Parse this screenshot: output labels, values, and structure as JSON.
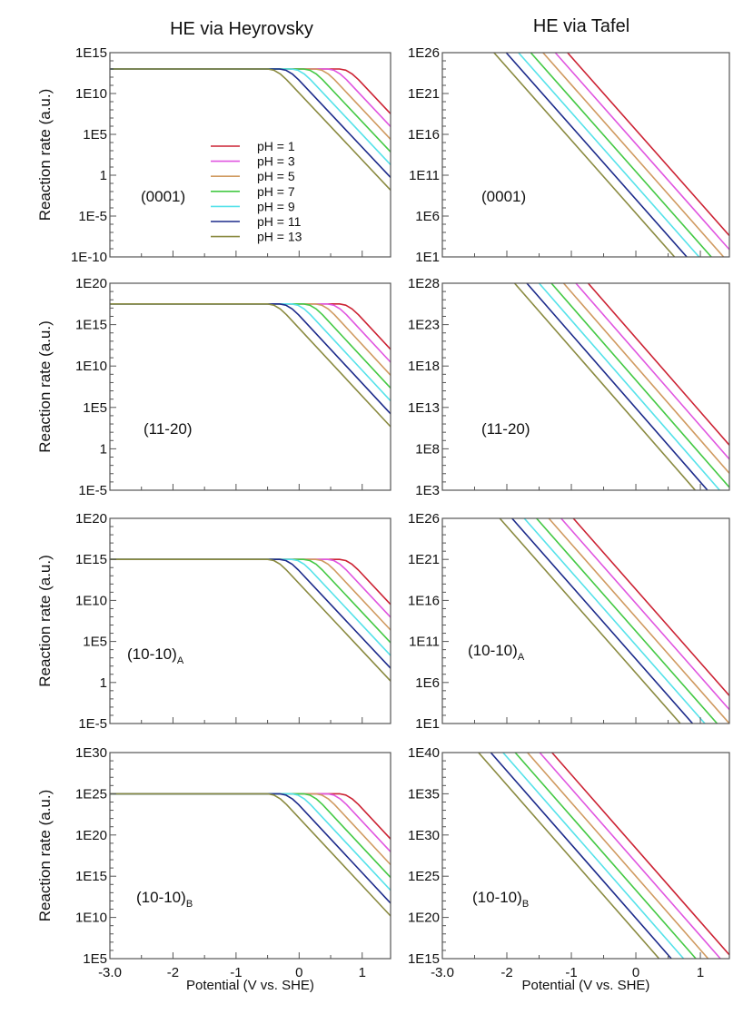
{
  "columns": [
    {
      "title": "HE via Heyrovsky"
    },
    {
      "title": "HE via Tafel"
    }
  ],
  "colors": [
    "#cc2233",
    "#e055e0",
    "#d09a60",
    "#44c944",
    "#55e2ea",
    "#1c2a8a",
    "#8a8a40"
  ],
  "legend": {
    "placement": "center",
    "entries": [
      "pH = 1",
      "pH = 3",
      "pH = 5",
      "pH = 7",
      "pH = 9",
      "pH = 11",
      "pH = 13"
    ]
  },
  "chart_data": [
    {
      "type": "line",
      "column": 0,
      "panel_label": "(0001)",
      "panel_sub": "",
      "ylabel": "Reaction rate (a.u.)",
      "xlabel": "",
      "yscale": "log",
      "xlim": [
        -3,
        1.45
      ],
      "ylim": [
        1e-10,
        1000000000000000.0
      ],
      "yticks": [
        1000000000000000.0,
        10000000000.0,
        100000.0,
        1,
        1e-05,
        1e-10
      ],
      "ytick_labels": [
        "1E15",
        "1E10",
        "1E5",
        "1",
        "1E-5",
        "1E-10"
      ],
      "xtick_labels": [],
      "show_legend": true,
      "series": [
        {
          "x": [
            -3,
            0.64,
            0.74,
            0.84,
            0.94,
            1.45
          ],
          "y": [
            10000000000000.0,
            10000000000000.0,
            7100000000000.0,
            2500000000000.0,
            500000000000.0,
            33000000.0
          ]
        },
        {
          "x": [
            -3,
            0.45,
            0.55,
            0.65,
            0.75,
            1.45
          ],
          "y": [
            10000000000000.0,
            10000000000000.0,
            7100000000000.0,
            2500000000000.0,
            500000000000.0,
            910000.0
          ]
        },
        {
          "x": [
            -3,
            0.26,
            0.36,
            0.46,
            0.56,
            1.45
          ],
          "y": [
            10000000000000.0,
            10000000000000.0,
            7100000000000.0,
            2500000000000.0,
            500000000000.0,
            25000.0
          ]
        },
        {
          "x": [
            -3,
            0.07,
            0.17,
            0.27,
            0.37,
            1.45
          ],
          "y": [
            10000000000000.0,
            10000000000000.0,
            7100000000000.0,
            2500000000000.0,
            500000000000.0,
            710
          ]
        },
        {
          "x": [
            -3,
            -0.12,
            -0.02,
            0.08,
            0.18,
            1.45
          ],
          "y": [
            10000000000000.0,
            10000000000000.0,
            7100000000000.0,
            2500000000000.0,
            500000000000.0,
            19.5
          ]
        },
        {
          "x": [
            -3,
            -0.31,
            -0.21,
            -0.11,
            -0.01,
            1.45
          ],
          "y": [
            10000000000000.0,
            10000000000000.0,
            7100000000000.0,
            2500000000000.0,
            500000000000.0,
            0.54
          ]
        },
        {
          "x": [
            -3,
            -0.5,
            -0.4,
            -0.3,
            -0.2,
            1.45
          ],
          "y": [
            10000000000000.0,
            10000000000000.0,
            7100000000000.0,
            2500000000000.0,
            500000000000.0,
            0.015
          ]
        }
      ]
    },
    {
      "type": "line",
      "column": 1,
      "panel_label": "(0001)",
      "panel_sub": "",
      "ylabel": "",
      "xlabel": "",
      "yscale": "log",
      "xlim": [
        -3,
        1.45
      ],
      "ylim": [
        10.0,
        1e+26
      ],
      "yticks": [
        1e+26,
        1e+21,
        1e+16,
        100000000000.0,
        1000000.0,
        10.0
      ],
      "ytick_labels": [
        "1E26",
        "1E21",
        "1E16",
        "1E11",
        "1E6",
        "1E1"
      ],
      "xtick_labels": [],
      "series": [
        {
          "x": [
            -1.06,
            1.45
          ],
          "y": [
            1e+26,
            4000.0
          ]
        },
        {
          "x": [
            -1.25,
            1.45
          ],
          "y": [
            1e+26,
            79
          ]
        },
        {
          "x": [
            -1.44,
            1.36
          ],
          "y": [
            1e+26,
            10
          ]
        },
        {
          "x": [
            -1.63,
            1.17
          ],
          "y": [
            1e+26,
            10
          ]
        },
        {
          "x": [
            -1.82,
            0.98
          ],
          "y": [
            1e+26,
            10
          ]
        },
        {
          "x": [
            -2.01,
            0.79
          ],
          "y": [
            1e+26,
            10
          ]
        },
        {
          "x": [
            -2.2,
            0.6
          ],
          "y": [
            1e+26,
            10
          ]
        }
      ]
    },
    {
      "type": "line",
      "column": 0,
      "panel_label": "(11-20)",
      "panel_sub": "",
      "ylabel": "Reaction rate (a.u.)",
      "xlabel": "",
      "yscale": "log",
      "xlim": [
        -3,
        1.45
      ],
      "ylim": [
        1e-05,
        1e+20
      ],
      "yticks": [
        1e+20,
        1000000000000000.0,
        10000000000.0,
        100000.0,
        1,
        1e-05
      ],
      "ytick_labels": [
        "1E20",
        "1E15",
        "1E10",
        "1E5",
        "1",
        "1E-5"
      ],
      "xtick_labels": [],
      "series": [
        {
          "x": [
            -3,
            0.64,
            0.74,
            0.84,
            0.94,
            1.45
          ],
          "y": [
            3.16e+17,
            3.16e+17,
            2.24e+17,
            7.9e+16,
            1.58e+16,
            1050000000000.0
          ]
        },
        {
          "x": [
            -3,
            0.45,
            0.55,
            0.65,
            0.75,
            1.45
          ],
          "y": [
            3.16e+17,
            3.16e+17,
            2.24e+17,
            7.9e+16,
            1.58e+16,
            29000000000.0
          ]
        },
        {
          "x": [
            -3,
            0.26,
            0.36,
            0.46,
            0.56,
            1.45
          ],
          "y": [
            3.16e+17,
            3.16e+17,
            2.24e+17,
            7.9e+16,
            1.58e+16,
            790000000.0
          ]
        },
        {
          "x": [
            -3,
            0.07,
            0.17,
            0.27,
            0.37,
            1.45
          ],
          "y": [
            3.16e+17,
            3.16e+17,
            2.24e+17,
            7.9e+16,
            1.58e+16,
            22000000.0
          ]
        },
        {
          "x": [
            -3,
            -0.12,
            -0.02,
            0.08,
            0.18,
            1.45
          ],
          "y": [
            3.16e+17,
            3.16e+17,
            2.24e+17,
            7.9e+16,
            1.58e+16,
            620000.0
          ]
        },
        {
          "x": [
            -3,
            -0.31,
            -0.21,
            -0.11,
            -0.01,
            1.45
          ],
          "y": [
            3.16e+17,
            3.16e+17,
            2.24e+17,
            7.9e+16,
            1.58e+16,
            17000.0
          ]
        },
        {
          "x": [
            -3,
            -0.5,
            -0.4,
            -0.3,
            -0.2,
            1.45
          ],
          "y": [
            3.16e+17,
            3.16e+17,
            2.24e+17,
            7.9e+16,
            1.58e+16,
            470
          ]
        }
      ]
    },
    {
      "type": "line",
      "column": 1,
      "panel_label": "(11-20)",
      "panel_sub": "",
      "ylabel": "",
      "xlabel": "",
      "yscale": "log",
      "xlim": [
        -3,
        1.45
      ],
      "ylim": [
        1000.0,
        1e+28
      ],
      "yticks": [
        1e+28,
        1e+23,
        1e+18,
        10000000000000.0,
        100000000.0,
        1000.0
      ],
      "ytick_labels": [
        "1E28",
        "1E23",
        "1E18",
        "1E13",
        "1E8",
        "1E3"
      ],
      "xtick_labels": [],
      "series": [
        {
          "x": [
            -0.74,
            1.45
          ],
          "y": [
            1e+28,
            280000000.0
          ]
        },
        {
          "x": [
            -0.93,
            1.45
          ],
          "y": [
            1e+28,
            5600000.0
          ]
        },
        {
          "x": [
            -1.12,
            1.45
          ],
          "y": [
            1e+28,
            110000.0
          ]
        },
        {
          "x": [
            -1.31,
            1.45
          ],
          "y": [
            1e+28,
            2200.0
          ]
        },
        {
          "x": [
            -1.5,
            1.3
          ],
          "y": [
            1e+28,
            1000.0
          ]
        },
        {
          "x": [
            -1.69,
            1.11
          ],
          "y": [
            1e+28,
            1000.0
          ]
        },
        {
          "x": [
            -1.88,
            0.92
          ],
          "y": [
            1e+28,
            1000.0
          ]
        }
      ]
    },
    {
      "type": "line",
      "column": 0,
      "panel_label": "(10-10)",
      "panel_sub": "A",
      "ylabel": "Reaction rate (a.u.)",
      "xlabel": "",
      "yscale": "log",
      "xlim": [
        -3,
        1.45
      ],
      "ylim": [
        1e-05,
        1e+20
      ],
      "yticks": [
        1e+20,
        1000000000000000.0,
        10000000000.0,
        100000.0,
        1,
        1e-05
      ],
      "ytick_labels": [
        "1E20",
        "1E15",
        "1E10",
        "1E5",
        "1",
        "1E-5"
      ],
      "xtick_labels": [],
      "series": [
        {
          "x": [
            -3,
            0.64,
            0.74,
            0.84,
            0.94,
            1.45
          ],
          "y": [
            1000000000000000.0,
            1000000000000000.0,
            710000000000000.0,
            250000000000000.0,
            50000000000000.0,
            3300000000.0
          ]
        },
        {
          "x": [
            -3,
            0.45,
            0.55,
            0.65,
            0.75,
            1.45
          ],
          "y": [
            1000000000000000.0,
            1000000000000000.0,
            710000000000000.0,
            250000000000000.0,
            50000000000000.0,
            91000000.0
          ]
        },
        {
          "x": [
            -3,
            0.26,
            0.36,
            0.46,
            0.56,
            1.45
          ],
          "y": [
            1000000000000000.0,
            1000000000000000.0,
            710000000000000.0,
            250000000000000.0,
            50000000000000.0,
            2500000.0
          ]
        },
        {
          "x": [
            -3,
            0.07,
            0.17,
            0.27,
            0.37,
            1.45
          ],
          "y": [
            1000000000000000.0,
            1000000000000000.0,
            710000000000000.0,
            250000000000000.0,
            50000000000000.0,
            71000.0
          ]
        },
        {
          "x": [
            -3,
            -0.12,
            -0.02,
            0.08,
            0.18,
            1.45
          ],
          "y": [
            1000000000000000.0,
            1000000000000000.0,
            710000000000000.0,
            250000000000000.0,
            50000000000000.0,
            1950
          ]
        },
        {
          "x": [
            -3,
            -0.31,
            -0.21,
            -0.11,
            -0.01,
            1.45
          ],
          "y": [
            1000000000000000.0,
            1000000000000000.0,
            710000000000000.0,
            250000000000000.0,
            50000000000000.0,
            54
          ]
        },
        {
          "x": [
            -3,
            -0.5,
            -0.4,
            -0.3,
            -0.2,
            1.45
          ],
          "y": [
            1000000000000000.0,
            1000000000000000.0,
            710000000000000.0,
            250000000000000.0,
            50000000000000.0,
            1.5
          ]
        }
      ]
    },
    {
      "type": "line",
      "column": 1,
      "panel_label": "(10-10)",
      "panel_sub": "A",
      "ylabel": "",
      "xlabel": "",
      "yscale": "log",
      "xlim": [
        -3,
        1.45
      ],
      "ylim": [
        10.0,
        1e+26
      ],
      "yticks": [
        1e+26,
        1e+21,
        1e+16,
        100000000000.0,
        1000000.0,
        10.0
      ],
      "ytick_labels": [
        "1E26",
        "1E21",
        "1E16",
        "1E11",
        "1E6",
        "1E1"
      ],
      "xtick_labels": [],
      "series": [
        {
          "x": [
            -0.97,
            1.45
          ],
          "y": [
            1e+26,
            25000.0
          ]
        },
        {
          "x": [
            -1.16,
            1.45
          ],
          "y": [
            1e+26,
            490
          ]
        },
        {
          "x": [
            -1.35,
            1.45
          ],
          "y": [
            1e+26,
            10
          ]
        },
        {
          "x": [
            -1.54,
            1.26
          ],
          "y": [
            1e+26,
            10
          ]
        },
        {
          "x": [
            -1.73,
            1.07
          ],
          "y": [
            1e+26,
            10
          ]
        },
        {
          "x": [
            -1.92,
            0.88
          ],
          "y": [
            1e+26,
            10
          ]
        },
        {
          "x": [
            -2.11,
            0.69
          ],
          "y": [
            1e+26,
            10
          ]
        }
      ]
    },
    {
      "type": "line",
      "column": 0,
      "panel_label": "(10-10)",
      "panel_sub": "B",
      "ylabel": "Reaction rate (a.u.)",
      "xlabel": "Potential (V vs. SHE)",
      "yscale": "log",
      "xlim": [
        -3,
        1.45
      ],
      "ylim": [
        100000.0,
        1e+30
      ],
      "yticks": [
        1e+30,
        1e+25,
        1e+20,
        1000000000000000.0,
        10000000000.0,
        100000.0
      ],
      "ytick_labels": [
        "1E30",
        "1E25",
        "1E20",
        "1E15",
        "1E10",
        "1E5"
      ],
      "xticks": [
        -3,
        -2,
        -1,
        0,
        1
      ],
      "xtick_labels": [
        "-3.0",
        "-2",
        "-1",
        "0",
        "1"
      ],
      "series": [
        {
          "x": [
            -3,
            0.64,
            0.74,
            0.84,
            0.94,
            1.45
          ],
          "y": [
            1e+25,
            1e+25,
            7.1e+24,
            2.5e+24,
            5e+23,
            3.3e+19
          ]
        },
        {
          "x": [
            -3,
            0.45,
            0.55,
            0.65,
            0.75,
            1.45
          ],
          "y": [
            1e+25,
            1e+25,
            7.1e+24,
            2.5e+24,
            5e+23,
            9.1e+17
          ]
        },
        {
          "x": [
            -3,
            0.26,
            0.36,
            0.46,
            0.56,
            1.45
          ],
          "y": [
            1e+25,
            1e+25,
            7.1e+24,
            2.5e+24,
            5e+23,
            2.5e+16
          ]
        },
        {
          "x": [
            -3,
            0.07,
            0.17,
            0.27,
            0.37,
            1.45
          ],
          "y": [
            1e+25,
            1e+25,
            7.1e+24,
            2.5e+24,
            5e+23,
            710000000000000.0
          ]
        },
        {
          "x": [
            -3,
            -0.12,
            -0.02,
            0.08,
            0.18,
            1.45
          ],
          "y": [
            1e+25,
            1e+25,
            7.1e+24,
            2.5e+24,
            5e+23,
            19500000000000.0
          ]
        },
        {
          "x": [
            -3,
            -0.31,
            -0.21,
            -0.11,
            -0.01,
            1.45
          ],
          "y": [
            1e+25,
            1e+25,
            7.1e+24,
            2.5e+24,
            5e+23,
            540000000000.0
          ]
        },
        {
          "x": [
            -3,
            -0.5,
            -0.4,
            -0.3,
            -0.2,
            1.45
          ],
          "y": [
            1e+25,
            1e+25,
            7.1e+24,
            2.5e+24,
            5e+23,
            15000000000.0
          ]
        }
      ]
    },
    {
      "type": "line",
      "column": 1,
      "panel_label": "(10-10)",
      "panel_sub": "B",
      "ylabel": "",
      "xlabel": "Potential (V vs. SHE)",
      "yscale": "log",
      "xlim": [
        -3,
        1.45
      ],
      "ylim": [
        1000000000000000.0,
        1e+40
      ],
      "yticks": [
        1e+40,
        1e+35,
        1e+30,
        1e+25,
        1e+20,
        1000000000000000.0
      ],
      "ytick_labels": [
        "1E40",
        "1E35",
        "1E30",
        "1E25",
        "1E20",
        "1E15"
      ],
      "xticks": [
        -3,
        -2,
        -1,
        0,
        1
      ],
      "xtick_labels": [
        "-3.0",
        "-2",
        "-1",
        "0",
        "1"
      ],
      "series": [
        {
          "x": [
            -1.3,
            1.45
          ],
          "y": [
            1e+40,
            2800000000000000.0
          ]
        },
        {
          "x": [
            -1.49,
            1.31
          ],
          "y": [
            1e+40,
            1000000000000000.0
          ]
        },
        {
          "x": [
            -1.68,
            1.12
          ],
          "y": [
            1e+40,
            1000000000000000.0
          ]
        },
        {
          "x": [
            -1.87,
            0.93
          ],
          "y": [
            1e+40,
            1000000000000000.0
          ]
        },
        {
          "x": [
            -2.06,
            0.74
          ],
          "y": [
            1e+40,
            1000000000000000.0
          ]
        },
        {
          "x": [
            -2.25,
            0.55
          ],
          "y": [
            1e+40,
            1000000000000000.0
          ]
        },
        {
          "x": [
            -2.44,
            0.36
          ],
          "y": [
            1e+40,
            1000000000000000.0
          ]
        }
      ]
    }
  ]
}
